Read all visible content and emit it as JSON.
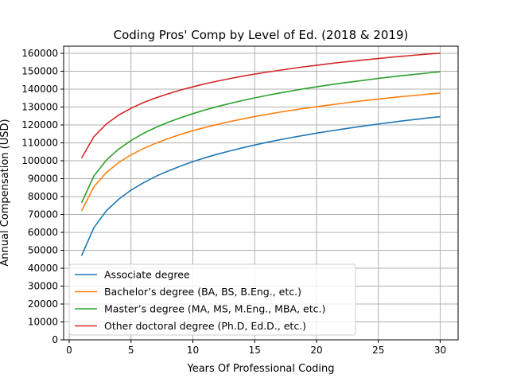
{
  "chart_data": {
    "type": "line",
    "title": "Coding Pros' Comp by Level of Ed. (2018 & 2019)",
    "xlabel": "Years Of Professional Coding",
    "ylabel": "Annual Compensation (USD)",
    "xlim": [
      -0.45,
      31.45
    ],
    "ylim": [
      0,
      164000
    ],
    "xticks": [
      0,
      5,
      10,
      15,
      20,
      25,
      30
    ],
    "yticks": [
      0,
      10000,
      20000,
      30000,
      40000,
      50000,
      60000,
      70000,
      80000,
      90000,
      100000,
      110000,
      120000,
      130000,
      140000,
      150000,
      160000
    ],
    "grid": true,
    "legend_position": "lower-left",
    "x": [
      1,
      2,
      3,
      4,
      5,
      6,
      7,
      8,
      9,
      10,
      11,
      12,
      13,
      14,
      15,
      16,
      17,
      18,
      19,
      20,
      21,
      22,
      23,
      24,
      25,
      26,
      27,
      28,
      29,
      30
    ],
    "series": [
      {
        "name": "Associate degree",
        "color": "#1f77b4",
        "values": [
          47000,
          62700,
          72000,
          78500,
          83600,
          87700,
          91300,
          94300,
          97000,
          99500,
          101700,
          103700,
          105500,
          107200,
          108800,
          110300,
          111700,
          113000,
          114200,
          115400,
          116500,
          117600,
          118600,
          119600,
          120500,
          121400,
          122300,
          123100,
          123900,
          124600
        ]
      },
      {
        "name": "Bachelor’s degree (BA, BS, B.Eng., etc.)",
        "color": "#ff7f0e",
        "values": [
          72000,
          85500,
          93400,
          99000,
          103300,
          106800,
          109800,
          112400,
          114700,
          116800,
          118600,
          120300,
          121900,
          123300,
          124700,
          125900,
          127100,
          128200,
          129200,
          130200,
          131100,
          132000,
          132900,
          133700,
          134400,
          135200,
          135900,
          136500,
          137200,
          137800
        ]
      },
      {
        "name": "Master’s degree (MA, MS, M.Eng., MBA, etc.)",
        "color": "#2ca02c",
        "values": [
          76500,
          91500,
          100300,
          106500,
          111300,
          115300,
          118600,
          121500,
          124000,
          126300,
          128400,
          130300,
          132000,
          133600,
          135100,
          136500,
          137800,
          139000,
          140200,
          141300,
          142300,
          143300,
          144200,
          145100,
          146000,
          146800,
          147600,
          148300,
          149000,
          149700
        ]
      },
      {
        "name": "Other doctoral degree (Ph.D, Ed.D., etc.)",
        "color": "#d62728",
        "values": [
          101500,
          113500,
          120500,
          125500,
          129300,
          132500,
          135100,
          137400,
          139500,
          141300,
          143000,
          144500,
          145900,
          147200,
          148400,
          149500,
          150500,
          151500,
          152500,
          153300,
          154200,
          155000,
          155700,
          156400,
          157100,
          157800,
          158400,
          159000,
          159600,
          160100
        ]
      }
    ]
  }
}
